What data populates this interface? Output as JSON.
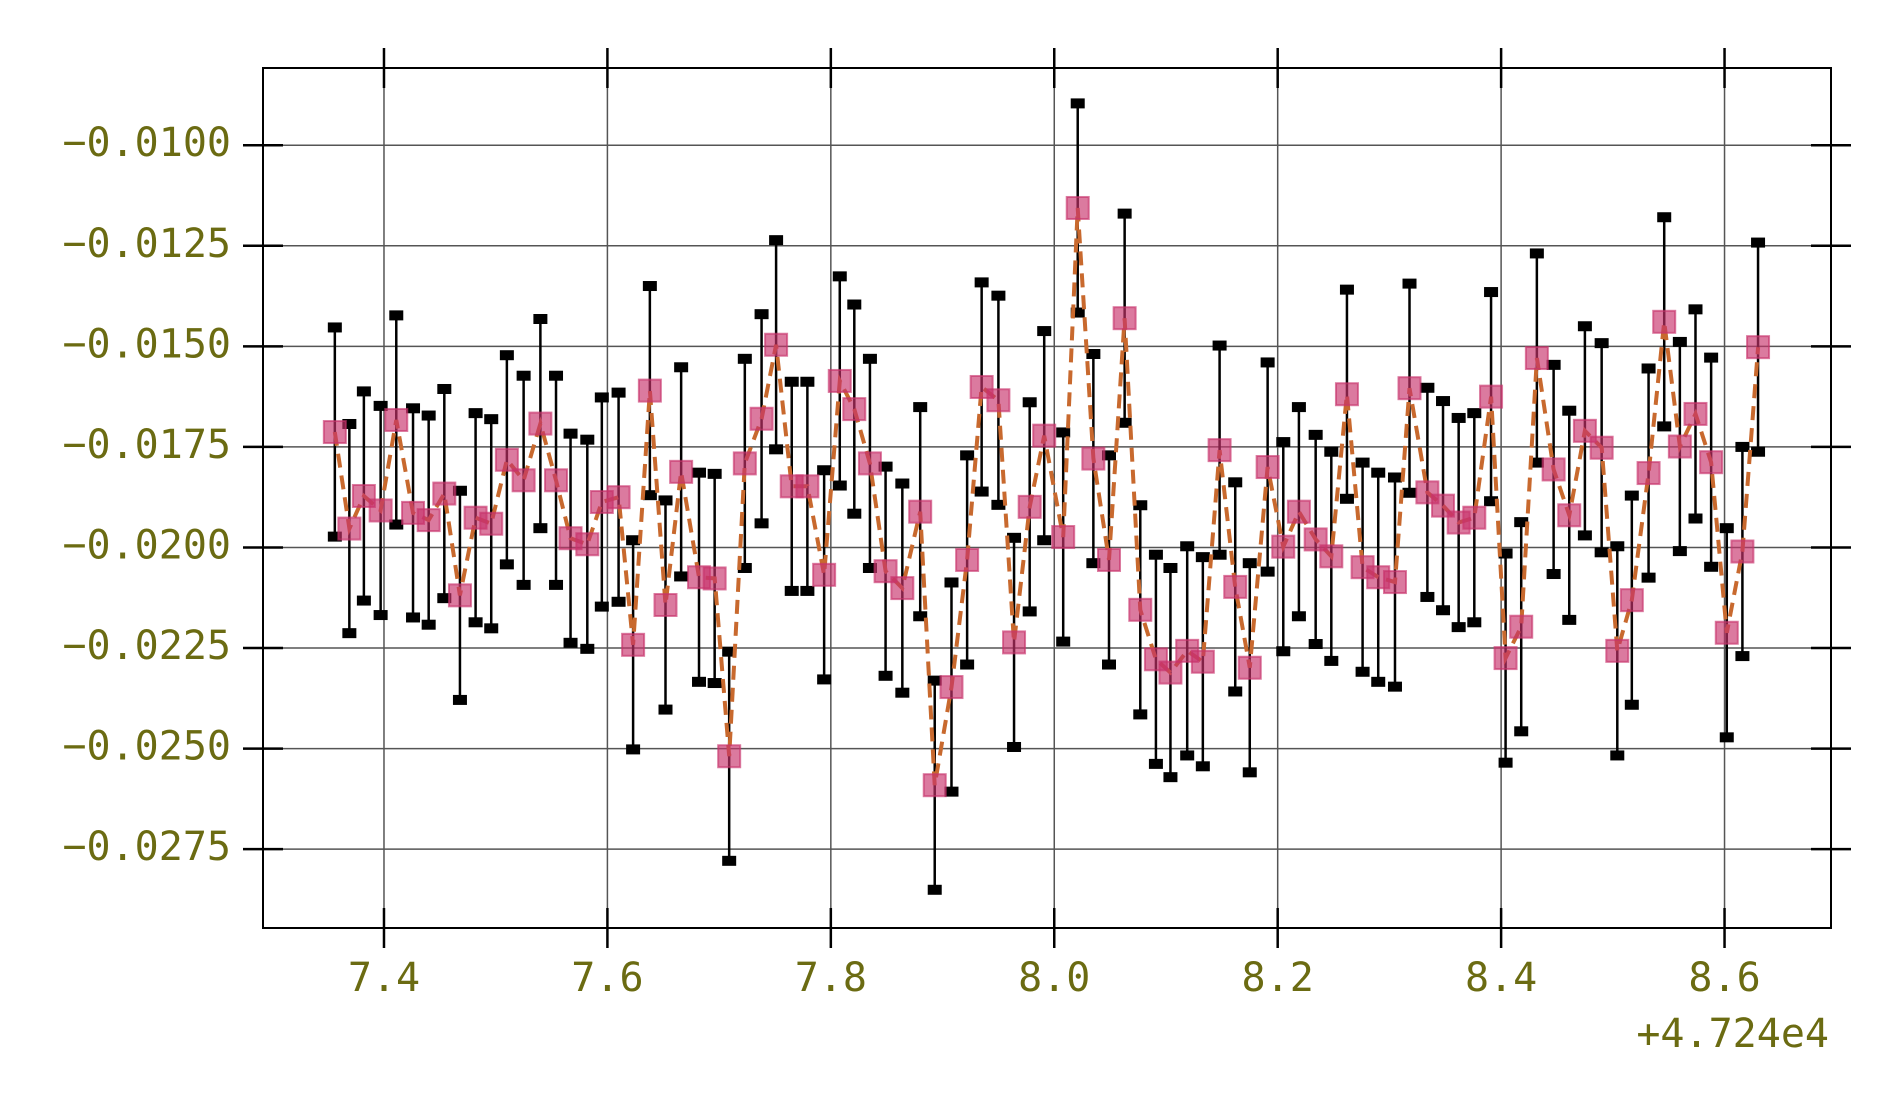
{
  "chart_data": {
    "type": "errorbar",
    "x": [
      7.356,
      7.369,
      7.382,
      7.397,
      7.411,
      7.426,
      7.44,
      7.454,
      7.468,
      7.482,
      7.496,
      7.51,
      7.525,
      7.54,
      7.554,
      7.567,
      7.582,
      7.595,
      7.61,
      7.623,
      7.638,
      7.652,
      7.666,
      7.682,
      7.696,
      7.709,
      7.723,
      7.738,
      7.751,
      7.765,
      7.779,
      7.794,
      7.808,
      7.821,
      7.835,
      7.849,
      7.864,
      7.88,
      7.893,
      7.908,
      7.922,
      7.935,
      7.95,
      7.964,
      7.978,
      7.991,
      8.008,
      8.021,
      8.035,
      8.049,
      8.063,
      8.077,
      8.091,
      8.104,
      8.119,
      8.133,
      8.148,
      8.162,
      8.175,
      8.191,
      8.205,
      8.219,
      8.234,
      8.248,
      8.262,
      8.276,
      8.29,
      8.305,
      8.318,
      8.334,
      8.348,
      8.362,
      8.376,
      8.391,
      8.404,
      8.418,
      8.432,
      8.447,
      8.461,
      8.475,
      8.49,
      8.504,
      8.517,
      8.532,
      8.546,
      8.56,
      8.574,
      8.588,
      8.602,
      8.616,
      8.63
    ],
    "values": [
      -0.01713,
      -0.01953,
      -0.01872,
      -0.01908,
      -0.01683,
      -0.01914,
      -0.01932,
      -0.01866,
      -0.02119,
      -0.01926,
      -0.01941,
      -0.01782,
      -0.01833,
      -0.01692,
      -0.01833,
      -0.01977,
      -0.01992,
      -0.01887,
      -0.01875,
      -0.02242,
      -0.0161,
      -0.02143,
      -0.01812,
      -0.02074,
      -0.02077,
      -0.02519,
      -0.01791,
      -0.0168,
      -0.01496,
      -0.01848,
      -0.01848,
      -0.02068,
      -0.01586,
      -0.01656,
      -0.01791,
      -0.02059,
      -0.02101,
      -0.01911,
      -0.02591,
      -0.02347,
      -0.02031,
      -0.01601,
      -0.01634,
      -0.02236,
      -0.01899,
      -0.01722,
      -0.01974,
      -0.01156,
      -0.01779,
      -0.02031,
      -0.0143,
      -0.02155,
      -0.02278,
      -0.02311,
      -0.02257,
      -0.02284,
      -0.01758,
      -0.02098,
      -0.02299,
      -0.018,
      -0.01998,
      -0.01911,
      -0.0198,
      -0.02022,
      -0.01619,
      -0.02049,
      -0.02074,
      -0.02086,
      -0.01604,
      -0.01863,
      -0.01896,
      -0.01938,
      -0.01926,
      -0.01625,
      -0.02275,
      -0.02197,
      -0.01529,
      -0.01806,
      -0.0192,
      -0.0171,
      -0.01752,
      -0.02257,
      -0.02131,
      -0.01815,
      -0.01439,
      -0.01749,
      -0.01668,
      -0.01788,
      -0.02212,
      -0.0201,
      -0.01502
    ],
    "yerr": 0.0026,
    "marker_color": "#c8336b",
    "line_color": "#c8692e",
    "error_color": "#000000",
    "grid": true,
    "xlim": [
      7.2917,
      8.6953
    ],
    "xticks": [
      7.4,
      7.6,
      7.8,
      {
        "value": 8,
        "label": "8.0"
      },
      8.2,
      8.4,
      8.6
    ],
    "x_offset_label": "+4.724e4",
    "ylim": [
      -0.02946,
      -0.00808
    ],
    "yticks": [
      {
        "value": -0.0275,
        "label": "−0.0275"
      },
      {
        "value": -0.025,
        "label": "−0.0250"
      },
      {
        "value": -0.0225,
        "label": "−0.0225"
      },
      {
        "value": -0.02,
        "label": "−0.0200"
      },
      {
        "value": -0.0175,
        "label": "−0.0175"
      },
      {
        "value": -0.015,
        "label": "−0.0150"
      },
      {
        "value": -0.0125,
        "label": "−0.0125"
      },
      {
        "value": -0.01,
        "label": "−0.0100"
      }
    ]
  }
}
